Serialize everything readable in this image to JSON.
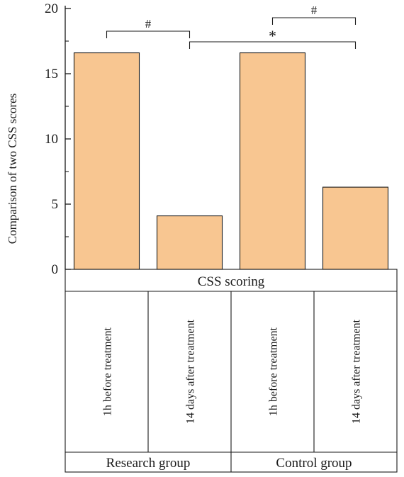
{
  "chart_data": {
    "type": "bar",
    "ylabel": "Comparison of two CSS scores",
    "ylim": [
      0,
      20
    ],
    "yticks": [
      "0",
      "5",
      "10",
      "15",
      "20"
    ],
    "table_header": "CSS scoring",
    "categories": [
      "1h before treatment",
      "14 days after  treatment",
      "1h before treatment",
      "14 days after  treatment"
    ],
    "groups": [
      "Research group",
      "Control group"
    ],
    "values": [
      16.6,
      4.1,
      16.6,
      6.3
    ],
    "bar_color": "#f8c691",
    "annotations": [
      {
        "symbol": "#",
        "from": 0,
        "to": 1
      },
      {
        "symbol": "*",
        "from": 1,
        "to": 3
      },
      {
        "symbol": "#",
        "from": 2,
        "to": 3
      }
    ],
    "grid": false
  }
}
